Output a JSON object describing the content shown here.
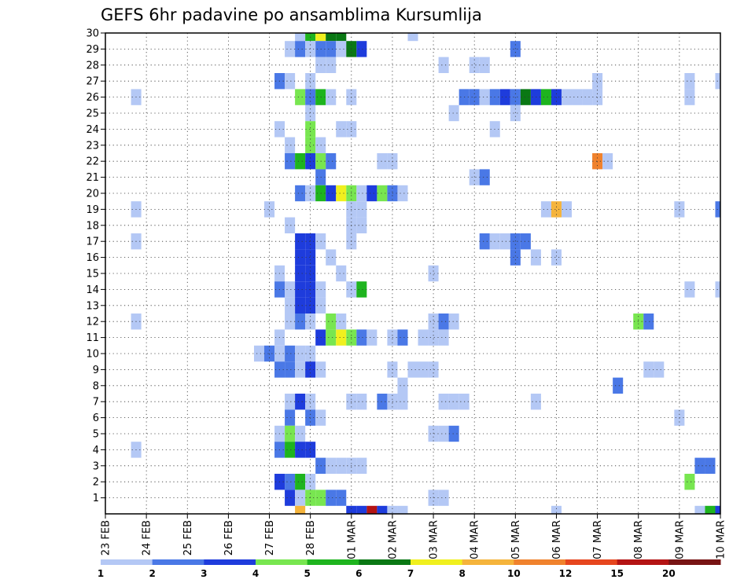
{
  "chart_data": {
    "type": "heatmap",
    "title": "GEFS 6hr padavine po ansamblima Kursumlija",
    "xlabel": "",
    "ylabel": "",
    "x_tick_labels": [
      "23 FEB",
      "24 FEB",
      "25 FEB",
      "26 FEB",
      "27 FEB",
      "28 FEB",
      "01 MAR",
      "02 MAR",
      "03 MAR",
      "04 MAR",
      "05 MAR",
      "06 MAR",
      "07 MAR",
      "08 MAR",
      "09 MAR",
      "10 MAR"
    ],
    "y_tick_labels": [
      "1",
      "2",
      "3",
      "4",
      "5",
      "6",
      "7",
      "8",
      "9",
      "10",
      "11",
      "12",
      "13",
      "14",
      "15",
      "16",
      "17",
      "18",
      "19",
      "20",
      "21",
      "22",
      "23",
      "24",
      "25",
      "26",
      "27",
      "28",
      "29",
      "30"
    ],
    "y_range": [
      0,
      30
    ],
    "x_range": [
      0,
      60
    ],
    "time_step_hours": 6,
    "grid": true,
    "legend_placement": "bottom",
    "colorbar": {
      "labels": [
        "1",
        "2",
        "3",
        "4",
        "5",
        "6",
        "7",
        "8",
        "10",
        "12",
        "15",
        "20"
      ],
      "colors": [
        "#b4c8f5",
        "#4a78e6",
        "#1e3cdc",
        "#78e650",
        "#1eb41e",
        "#0a7814",
        "#f0f01e",
        "#f5b43c",
        "#f0822d",
        "#e6461e",
        "#b41414",
        "#781414"
      ]
    },
    "cells": [
      {
        "t": 19,
        "m": 30,
        "c": 1
      },
      {
        "t": 20,
        "m": 30,
        "c": 5
      },
      {
        "t": 21,
        "m": 30,
        "c": 7
      },
      {
        "t": 22,
        "m": 30,
        "c": 6
      },
      {
        "t": 23,
        "m": 30,
        "c": 6
      },
      {
        "t": 30,
        "m": 30,
        "c": 1
      },
      {
        "t": 18,
        "m": 29,
        "c": 1
      },
      {
        "t": 19,
        "m": 29,
        "c": 2
      },
      {
        "t": 20,
        "m": 29,
        "c": 1
      },
      {
        "t": 21,
        "m": 29,
        "c": 2
      },
      {
        "t": 22,
        "m": 29,
        "c": 2
      },
      {
        "t": 23,
        "m": 29,
        "c": 1
      },
      {
        "t": 24,
        "m": 29,
        "c": 6
      },
      {
        "t": 25,
        "m": 29,
        "c": 3
      },
      {
        "t": 40,
        "m": 29,
        "c": 2
      },
      {
        "t": 21,
        "m": 28,
        "c": 1
      },
      {
        "t": 22,
        "m": 28,
        "c": 1
      },
      {
        "t": 33,
        "m": 28,
        "c": 1
      },
      {
        "t": 36,
        "m": 28,
        "c": 1
      },
      {
        "t": 37,
        "m": 28,
        "c": 1
      },
      {
        "t": 17,
        "m": 27,
        "c": 2
      },
      {
        "t": 18,
        "m": 27,
        "c": 1
      },
      {
        "t": 20,
        "m": 27,
        "c": 1
      },
      {
        "t": 48,
        "m": 27,
        "c": 1
      },
      {
        "t": 57,
        "m": 27,
        "c": 1
      },
      {
        "t": 60,
        "m": 27,
        "c": 1
      },
      {
        "t": 3,
        "m": 26,
        "c": 1
      },
      {
        "t": 19,
        "m": 26,
        "c": 4
      },
      {
        "t": 20,
        "m": 26,
        "c": 2
      },
      {
        "t": 21,
        "m": 26,
        "c": 5
      },
      {
        "t": 22,
        "m": 26,
        "c": 1
      },
      {
        "t": 24,
        "m": 26,
        "c": 1
      },
      {
        "t": 35,
        "m": 26,
        "c": 2
      },
      {
        "t": 36,
        "m": 26,
        "c": 2
      },
      {
        "t": 37,
        "m": 26,
        "c": 1
      },
      {
        "t": 38,
        "m": 26,
        "c": 2
      },
      {
        "t": 39,
        "m": 26,
        "c": 3
      },
      {
        "t": 40,
        "m": 26,
        "c": 2
      },
      {
        "t": 41,
        "m": 26,
        "c": 6
      },
      {
        "t": 42,
        "m": 26,
        "c": 3
      },
      {
        "t": 43,
        "m": 26,
        "c": 5
      },
      {
        "t": 44,
        "m": 26,
        "c": 3
      },
      {
        "t": 45,
        "m": 26,
        "c": 1
      },
      {
        "t": 46,
        "m": 26,
        "c": 1
      },
      {
        "t": 47,
        "m": 26,
        "c": 1
      },
      {
        "t": 48,
        "m": 26,
        "c": 1
      },
      {
        "t": 57,
        "m": 26,
        "c": 1
      },
      {
        "t": 20,
        "m": 25,
        "c": 1
      },
      {
        "t": 34,
        "m": 25,
        "c": 1
      },
      {
        "t": 40,
        "m": 25,
        "c": 1
      },
      {
        "t": 17,
        "m": 24,
        "c": 1
      },
      {
        "t": 20,
        "m": 24,
        "c": 4
      },
      {
        "t": 23,
        "m": 24,
        "c": 1
      },
      {
        "t": 24,
        "m": 24,
        "c": 1
      },
      {
        "t": 38,
        "m": 24,
        "c": 1
      },
      {
        "t": 18,
        "m": 23,
        "c": 1
      },
      {
        "t": 20,
        "m": 23,
        "c": 4
      },
      {
        "t": 21,
        "m": 23,
        "c": 1
      },
      {
        "t": 18,
        "m": 22,
        "c": 2
      },
      {
        "t": 19,
        "m": 22,
        "c": 5
      },
      {
        "t": 20,
        "m": 22,
        "c": 3
      },
      {
        "t": 21,
        "m": 22,
        "c": 4
      },
      {
        "t": 22,
        "m": 22,
        "c": 2
      },
      {
        "t": 27,
        "m": 22,
        "c": 1
      },
      {
        "t": 28,
        "m": 22,
        "c": 1
      },
      {
        "t": 48,
        "m": 22,
        "c": 9
      },
      {
        "t": 49,
        "m": 22,
        "c": 1
      },
      {
        "t": 21,
        "m": 21,
        "c": 2
      },
      {
        "t": 36,
        "m": 21,
        "c": 1
      },
      {
        "t": 37,
        "m": 21,
        "c": 2
      },
      {
        "t": 19,
        "m": 20,
        "c": 2
      },
      {
        "t": 20,
        "m": 20,
        "c": 1
      },
      {
        "t": 21,
        "m": 20,
        "c": 5
      },
      {
        "t": 22,
        "m": 20,
        "c": 3
      },
      {
        "t": 23,
        "m": 20,
        "c": 7
      },
      {
        "t": 24,
        "m": 20,
        "c": 4
      },
      {
        "t": 25,
        "m": 20,
        "c": 1
      },
      {
        "t": 26,
        "m": 20,
        "c": 3
      },
      {
        "t": 27,
        "m": 20,
        "c": 4
      },
      {
        "t": 28,
        "m": 20,
        "c": 2
      },
      {
        "t": 29,
        "m": 20,
        "c": 1
      },
      {
        "t": 3,
        "m": 19,
        "c": 1
      },
      {
        "t": 16,
        "m": 19,
        "c": 1
      },
      {
        "t": 24,
        "m": 19,
        "c": 1
      },
      {
        "t": 25,
        "m": 19,
        "c": 1
      },
      {
        "t": 43,
        "m": 19,
        "c": 1
      },
      {
        "t": 44,
        "m": 19,
        "c": 8
      },
      {
        "t": 45,
        "m": 19,
        "c": 1
      },
      {
        "t": 56,
        "m": 19,
        "c": 1
      },
      {
        "t": 60,
        "m": 19,
        "c": 2
      },
      {
        "t": 18,
        "m": 18,
        "c": 1
      },
      {
        "t": 24,
        "m": 18,
        "c": 1
      },
      {
        "t": 25,
        "m": 18,
        "c": 1
      },
      {
        "t": 3,
        "m": 17,
        "c": 1
      },
      {
        "t": 19,
        "m": 17,
        "c": 3
      },
      {
        "t": 20,
        "m": 17,
        "c": 3
      },
      {
        "t": 21,
        "m": 17,
        "c": 1
      },
      {
        "t": 24,
        "m": 17,
        "c": 1
      },
      {
        "t": 37,
        "m": 17,
        "c": 2
      },
      {
        "t": 38,
        "m": 17,
        "c": 1
      },
      {
        "t": 39,
        "m": 17,
        "c": 1
      },
      {
        "t": 40,
        "m": 17,
        "c": 2
      },
      {
        "t": 41,
        "m": 17,
        "c": 2
      },
      {
        "t": 19,
        "m": 16,
        "c": 3
      },
      {
        "t": 20,
        "m": 16,
        "c": 3
      },
      {
        "t": 22,
        "m": 16,
        "c": 1
      },
      {
        "t": 40,
        "m": 16,
        "c": 2
      },
      {
        "t": 42,
        "m": 16,
        "c": 1
      },
      {
        "t": 44,
        "m": 16,
        "c": 1
      },
      {
        "t": 17,
        "m": 15,
        "c": 1
      },
      {
        "t": 19,
        "m": 15,
        "c": 3
      },
      {
        "t": 20,
        "m": 15,
        "c": 3
      },
      {
        "t": 23,
        "m": 15,
        "c": 1
      },
      {
        "t": 32,
        "m": 15,
        "c": 1
      },
      {
        "t": 17,
        "m": 14,
        "c": 2
      },
      {
        "t": 18,
        "m": 14,
        "c": 1
      },
      {
        "t": 19,
        "m": 14,
        "c": 3
      },
      {
        "t": 20,
        "m": 14,
        "c": 3
      },
      {
        "t": 21,
        "m": 14,
        "c": 1
      },
      {
        "t": 24,
        "m": 14,
        "c": 1
      },
      {
        "t": 25,
        "m": 14,
        "c": 5
      },
      {
        "t": 57,
        "m": 14,
        "c": 1
      },
      {
        "t": 60,
        "m": 14,
        "c": 1
      },
      {
        "t": 18,
        "m": 13,
        "c": 1
      },
      {
        "t": 19,
        "m": 13,
        "c": 3
      },
      {
        "t": 20,
        "m": 13,
        "c": 3
      },
      {
        "t": 21,
        "m": 13,
        "c": 1
      },
      {
        "t": 3,
        "m": 12,
        "c": 1
      },
      {
        "t": 18,
        "m": 12,
        "c": 1
      },
      {
        "t": 19,
        "m": 12,
        "c": 2
      },
      {
        "t": 20,
        "m": 12,
        "c": 1
      },
      {
        "t": 22,
        "m": 12,
        "c": 4
      },
      {
        "t": 23,
        "m": 12,
        "c": 1
      },
      {
        "t": 32,
        "m": 12,
        "c": 1
      },
      {
        "t": 33,
        "m": 12,
        "c": 2
      },
      {
        "t": 34,
        "m": 12,
        "c": 1
      },
      {
        "t": 52,
        "m": 12,
        "c": 4
      },
      {
        "t": 53,
        "m": 12,
        "c": 2
      },
      {
        "t": 17,
        "m": 11,
        "c": 1
      },
      {
        "t": 21,
        "m": 11,
        "c": 3
      },
      {
        "t": 22,
        "m": 11,
        "c": 4
      },
      {
        "t": 23,
        "m": 11,
        "c": 7
      },
      {
        "t": 24,
        "m": 11,
        "c": 4
      },
      {
        "t": 25,
        "m": 11,
        "c": 2
      },
      {
        "t": 26,
        "m": 11,
        "c": 1
      },
      {
        "t": 28,
        "m": 11,
        "c": 1
      },
      {
        "t": 29,
        "m": 11,
        "c": 2
      },
      {
        "t": 31,
        "m": 11,
        "c": 1
      },
      {
        "t": 32,
        "m": 11,
        "c": 1
      },
      {
        "t": 33,
        "m": 11,
        "c": 1
      },
      {
        "t": 15,
        "m": 10,
        "c": 1
      },
      {
        "t": 16,
        "m": 10,
        "c": 2
      },
      {
        "t": 17,
        "m": 10,
        "c": 1
      },
      {
        "t": 18,
        "m": 10,
        "c": 2
      },
      {
        "t": 19,
        "m": 10,
        "c": 1
      },
      {
        "t": 20,
        "m": 10,
        "c": 1
      },
      {
        "t": 17,
        "m": 9,
        "c": 2
      },
      {
        "t": 18,
        "m": 9,
        "c": 2
      },
      {
        "t": 19,
        "m": 9,
        "c": 1
      },
      {
        "t": 20,
        "m": 9,
        "c": 3
      },
      {
        "t": 21,
        "m": 9,
        "c": 1
      },
      {
        "t": 28,
        "m": 9,
        "c": 1
      },
      {
        "t": 30,
        "m": 9,
        "c": 1
      },
      {
        "t": 31,
        "m": 9,
        "c": 1
      },
      {
        "t": 32,
        "m": 9,
        "c": 1
      },
      {
        "t": 53,
        "m": 9,
        "c": 1
      },
      {
        "t": 54,
        "m": 9,
        "c": 1
      },
      {
        "t": 29,
        "m": 8,
        "c": 1
      },
      {
        "t": 50,
        "m": 8,
        "c": 2
      },
      {
        "t": 18,
        "m": 7,
        "c": 1
      },
      {
        "t": 19,
        "m": 7,
        "c": 3
      },
      {
        "t": 20,
        "m": 7,
        "c": 1
      },
      {
        "t": 24,
        "m": 7,
        "c": 1
      },
      {
        "t": 25,
        "m": 7,
        "c": 1
      },
      {
        "t": 27,
        "m": 7,
        "c": 2
      },
      {
        "t": 28,
        "m": 7,
        "c": 1
      },
      {
        "t": 29,
        "m": 7,
        "c": 1
      },
      {
        "t": 33,
        "m": 7,
        "c": 1
      },
      {
        "t": 34,
        "m": 7,
        "c": 1
      },
      {
        "t": 35,
        "m": 7,
        "c": 1
      },
      {
        "t": 42,
        "m": 7,
        "c": 1
      },
      {
        "t": 18,
        "m": 6,
        "c": 2
      },
      {
        "t": 20,
        "m": 6,
        "c": 2
      },
      {
        "t": 21,
        "m": 6,
        "c": 1
      },
      {
        "t": 56,
        "m": 6,
        "c": 1
      },
      {
        "t": 17,
        "m": 5,
        "c": 1
      },
      {
        "t": 18,
        "m": 5,
        "c": 4
      },
      {
        "t": 19,
        "m": 5,
        "c": 1
      },
      {
        "t": 32,
        "m": 5,
        "c": 1
      },
      {
        "t": 33,
        "m": 5,
        "c": 1
      },
      {
        "t": 34,
        "m": 5,
        "c": 2
      },
      {
        "t": 3,
        "m": 4,
        "c": 1
      },
      {
        "t": 17,
        "m": 4,
        "c": 2
      },
      {
        "t": 18,
        "m": 4,
        "c": 5
      },
      {
        "t": 19,
        "m": 4,
        "c": 3
      },
      {
        "t": 20,
        "m": 4,
        "c": 3
      },
      {
        "t": 21,
        "m": 3,
        "c": 2
      },
      {
        "t": 22,
        "m": 3,
        "c": 1
      },
      {
        "t": 23,
        "m": 3,
        "c": 1
      },
      {
        "t": 24,
        "m": 3,
        "c": 1
      },
      {
        "t": 25,
        "m": 3,
        "c": 1
      },
      {
        "t": 58,
        "m": 3,
        "c": 2
      },
      {
        "t": 59,
        "m": 3,
        "c": 2
      },
      {
        "t": 17,
        "m": 2,
        "c": 3
      },
      {
        "t": 18,
        "m": 2,
        "c": 2
      },
      {
        "t": 19,
        "m": 2,
        "c": 5
      },
      {
        "t": 20,
        "m": 2,
        "c": 1
      },
      {
        "t": 57,
        "m": 2,
        "c": 4
      },
      {
        "t": 18,
        "m": 1,
        "c": 3
      },
      {
        "t": 19,
        "m": 1,
        "c": 1
      },
      {
        "t": 20,
        "m": 1,
        "c": 4
      },
      {
        "t": 21,
        "m": 1,
        "c": 4
      },
      {
        "t": 22,
        "m": 1,
        "c": 2
      },
      {
        "t": 23,
        "m": 1,
        "c": 2
      },
      {
        "t": 32,
        "m": 1,
        "c": 1
      },
      {
        "t": 33,
        "m": 1,
        "c": 1
      },
      {
        "t": 19,
        "m": 0,
        "c": 8
      },
      {
        "t": 24,
        "m": 0,
        "c": 3
      },
      {
        "t": 25,
        "m": 0,
        "c": 3
      },
      {
        "t": 26,
        "m": 0,
        "c": 11
      },
      {
        "t": 27,
        "m": 0,
        "c": 3
      },
      {
        "t": 28,
        "m": 0,
        "c": 1
      },
      {
        "t": 29,
        "m": 0,
        "c": 1
      },
      {
        "t": 44,
        "m": 0,
        "c": 1
      },
      {
        "t": 58,
        "m": 0,
        "c": 1
      },
      {
        "t": 59,
        "m": 0,
        "c": 5
      },
      {
        "t": 60,
        "m": 0,
        "c": 3
      }
    ]
  }
}
